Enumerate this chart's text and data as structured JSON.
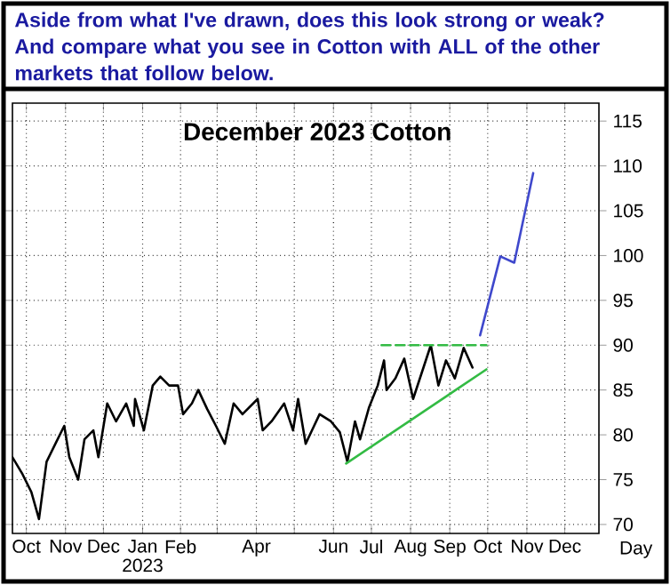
{
  "chart_data": {
    "type": "line",
    "title": "Aside from what I've drawn, does this look strong or weak? And compare what you see in Cotton with ALL of the other markets that follow below.",
    "subtitle": "December 2023 Cotton",
    "xlabel": "Day",
    "annotations": [
      "2023"
    ],
    "xlim": [
      "2022-10-05",
      "2024-01-12"
    ],
    "ylim": [
      69,
      117
    ],
    "xticks": [
      {
        "value": "2022-10-16",
        "label": "Oct"
      },
      {
        "value": "2022-11-16",
        "label": "Nov"
      },
      {
        "value": "2022-12-16",
        "label": "Dec"
      },
      {
        "value": "2023-01-16",
        "label": "Jan"
      },
      {
        "value": "2023-02-15",
        "label": "Feb"
      },
      {
        "value": "2023-03-16",
        "label": null
      },
      {
        "value": "2023-04-16",
        "label": "Apr"
      },
      {
        "value": "2023-05-16",
        "label": null
      },
      {
        "value": "2023-06-16",
        "label": "Jun"
      },
      {
        "value": "2023-07-16",
        "label": "Jul"
      },
      {
        "value": "2023-08-16",
        "label": "Aug"
      },
      {
        "value": "2023-09-16",
        "label": "Sep"
      },
      {
        "value": "2023-10-16",
        "label": "Oct"
      },
      {
        "value": "2023-11-16",
        "label": "Nov"
      },
      {
        "value": "2023-12-16",
        "label": "Dec"
      }
    ],
    "yticks": [
      70,
      75,
      80,
      85,
      90,
      95,
      100,
      105,
      110,
      115
    ],
    "grid": true,
    "marker": "none",
    "series": [
      {
        "color": "#000000",
        "x": [
          "2022-10-05",
          "2022-10-13",
          "2022-10-20",
          "2022-10-26",
          "2022-11-01",
          "2022-11-08",
          "2022-11-15",
          "2022-11-19",
          "2022-11-26",
          "2022-12-01",
          "2022-12-08",
          "2022-12-12",
          "2022-12-19",
          "2022-12-26",
          "2023-01-03",
          "2023-01-09",
          "2023-01-10",
          "2023-01-17",
          "2023-01-24",
          "2023-01-30",
          "2023-02-06",
          "2023-02-13",
          "2023-02-17",
          "2023-02-24",
          "2023-03-01",
          "2023-03-08",
          "2023-03-15",
          "2023-03-22",
          "2023-03-29",
          "2023-04-05",
          "2023-04-17",
          "2023-04-21",
          "2023-04-28",
          "2023-05-08",
          "2023-05-15",
          "2023-05-19",
          "2023-05-25",
          "2023-05-30",
          "2023-06-05",
          "2023-06-14",
          "2023-06-21",
          "2023-06-27",
          "2023-07-03",
          "2023-07-07",
          "2023-07-14",
          "2023-07-21",
          "2023-07-26",
          "2023-07-28",
          "2023-08-04",
          "2023-08-11",
          "2023-08-18",
          "2023-08-25",
          "2023-09-01",
          "2023-09-07",
          "2023-09-13",
          "2023-09-20",
          "2023-09-27",
          "2023-10-04"
        ],
        "values": [
          77.5,
          75.6,
          73.6,
          70.6,
          77,
          79,
          81,
          77.5,
          75,
          79.5,
          80.5,
          77.5,
          83.5,
          81.5,
          83.5,
          81,
          84,
          80.5,
          85.5,
          86.5,
          85.5,
          85.5,
          82.3,
          83.5,
          85,
          82.9,
          81,
          79,
          83.5,
          82.3,
          84,
          80.5,
          81.5,
          83.5,
          80.5,
          84,
          79,
          80.5,
          82.3,
          81.5,
          80.3,
          77,
          81.5,
          79.5,
          83,
          85.5,
          88.3,
          85,
          86.3,
          88.5,
          84,
          87,
          90,
          85.5,
          88.3,
          86.3,
          89.7,
          87.5
        ]
      },
      {
        "color": "#33bb44",
        "x": [
          "2023-06-26",
          "2023-10-15"
        ],
        "values": [
          76.8,
          87.3
        ]
      },
      {
        "color": "#33bb44",
        "line_style": "dashed",
        "x": [
          "2023-07-24",
          "2023-10-15"
        ],
        "values": [
          90,
          90
        ]
      },
      {
        "color": "#3f48cc",
        "x": [
          "2023-10-10",
          "2023-10-26",
          "2023-11-06",
          "2023-11-21"
        ],
        "values": [
          91.1,
          99.9,
          99.2,
          109.2
        ]
      }
    ]
  }
}
